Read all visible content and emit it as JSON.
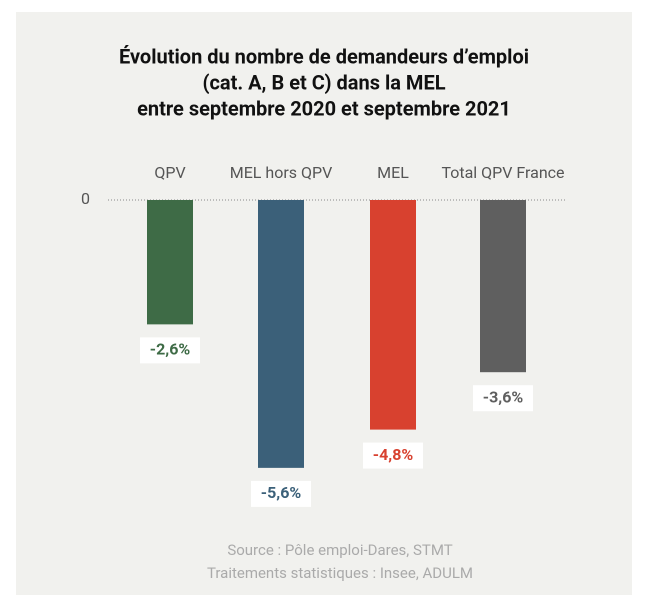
{
  "chart_data": {
    "type": "bar",
    "title": [
      "Évolution du nombre de demandeurs d’emploi",
      "(cat. A, B et C) dans la MEL",
      "entre septembre 2020 et septembre 2021"
    ],
    "categories": [
      "QPV",
      "MEL hors QPV",
      "MEL",
      "Total QPV France"
    ],
    "values": [
      -2.6,
      -5.6,
      -4.8,
      -3.6
    ],
    "value_labels": [
      "-2,6%",
      "-5,6%",
      "-4,8%",
      "-3,6%"
    ],
    "colors": [
      "#3e6b46",
      "#3b6079",
      "#d8412f",
      "#5f5f5f"
    ],
    "ylim": [
      -6,
      0
    ],
    "yticks": [
      0
    ],
    "source": [
      "Source : Pôle emploi-Dares, STMT",
      "Traitements statistiques : Insee, ADULM"
    ]
  }
}
